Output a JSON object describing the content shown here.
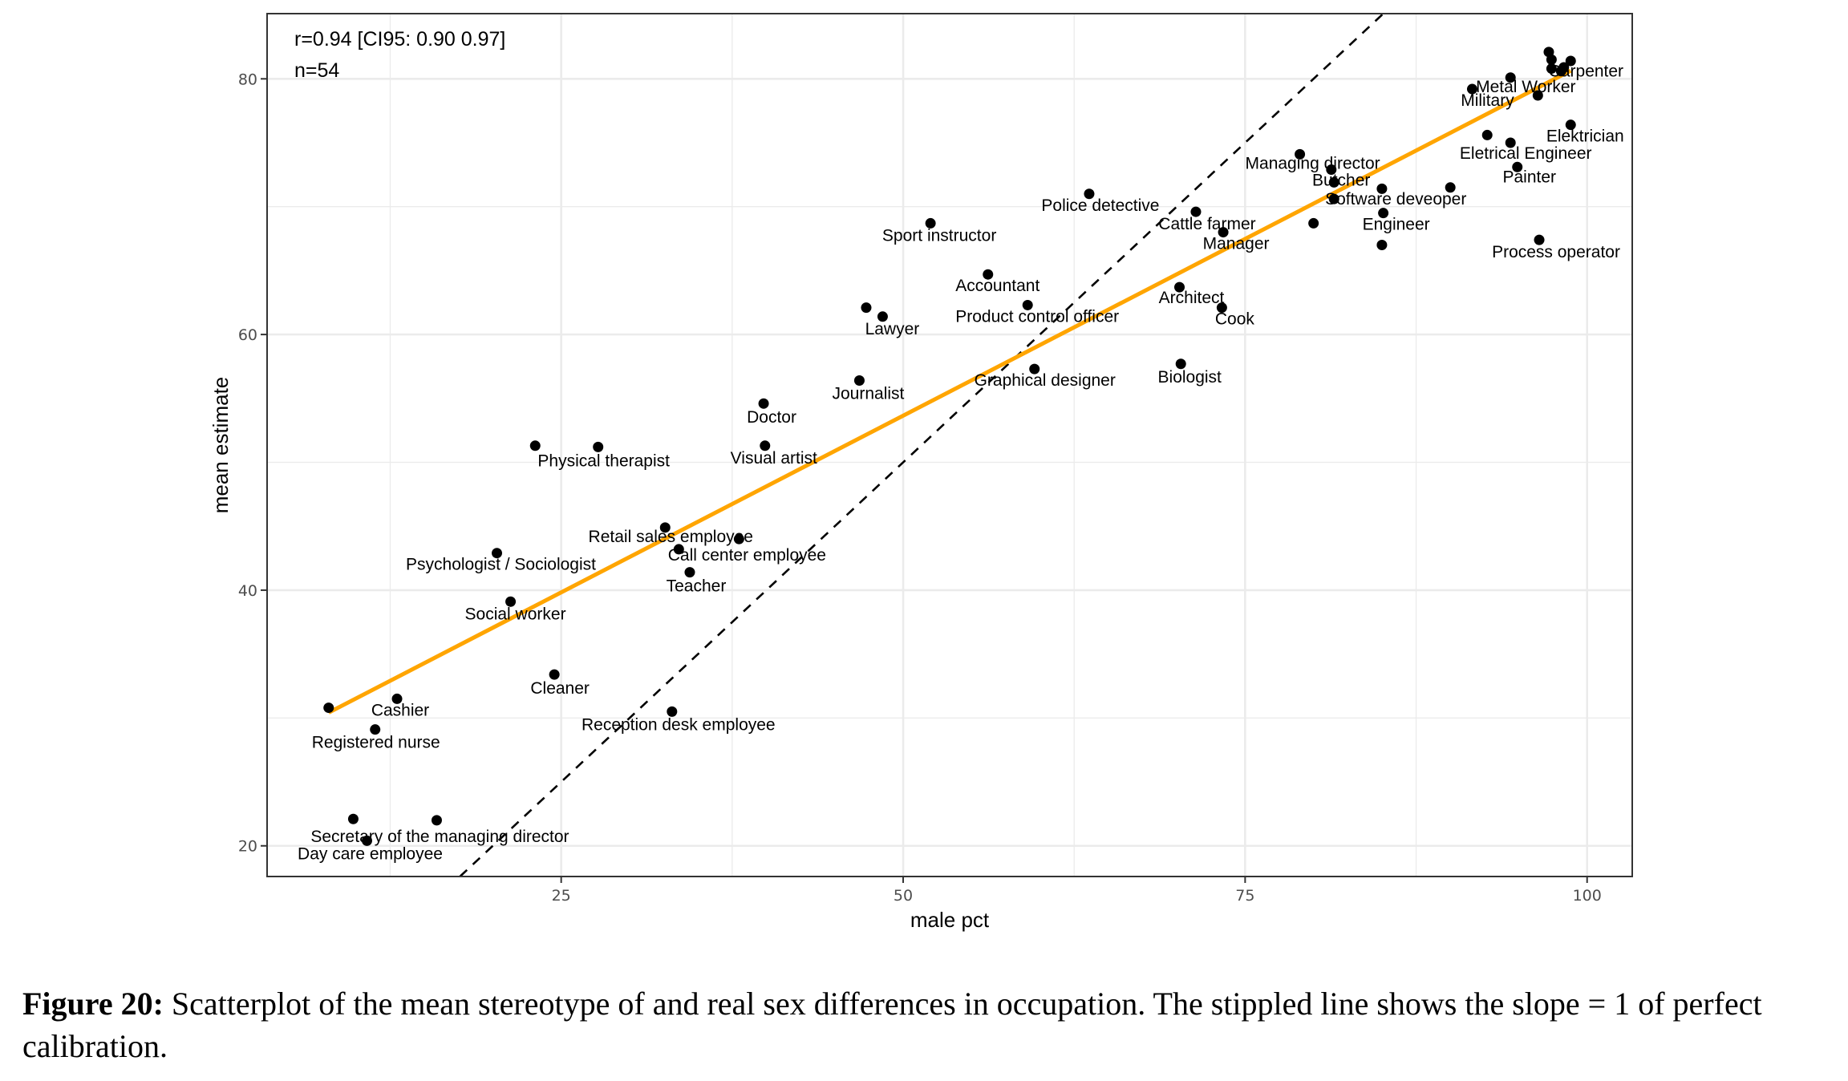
{
  "chart_data": {
    "type": "scatter",
    "title": "",
    "xlabel": "male pct",
    "ylabel": "mean estimate",
    "xlim": [
      3.5,
      103.3
    ],
    "ylim": [
      17.6,
      85.1
    ],
    "x_ticks": [
      25,
      50,
      75,
      100
    ],
    "y_ticks": [
      20,
      40,
      60,
      80
    ],
    "grid": true,
    "annotations": [
      "r=0.94 [CI95: 0.90 0.97]",
      "n=54"
    ],
    "regression_line": {
      "color": "#FFA500",
      "x_range": [
        8.0,
        98.8
      ],
      "intercept": 26.0,
      "slope": 0.553
    },
    "reference_line": {
      "style": "dashed",
      "color": "#000000",
      "intercept": 0,
      "slope": 1,
      "label": "slope = 1"
    },
    "points": [
      {
        "x": 97.4,
        "y": 80.8,
        "label": "Carpenter"
      },
      {
        "x": 96.4,
        "y": 78.7,
        "label": "Metal Worker"
      },
      {
        "x": 91.6,
        "y": 79.2,
        "label": "Military"
      },
      {
        "x": 98.8,
        "y": 76.4,
        "label": "Elektrician"
      },
      {
        "x": 94.4,
        "y": 75.0,
        "label": "Eletrical Engineer"
      },
      {
        "x": 94.9,
        "y": 73.1,
        "label": "Painter"
      },
      {
        "x": 79.0,
        "y": 74.1,
        "label": "Managing director"
      },
      {
        "x": 81.5,
        "y": 71.9,
        "label": "Butcher"
      },
      {
        "x": 81.5,
        "y": 70.6,
        "label": "Software deveoper"
      },
      {
        "x": 63.6,
        "y": 71.0,
        "label": "Police detective"
      },
      {
        "x": 71.4,
        "y": 69.6,
        "label": "Cattle farmer"
      },
      {
        "x": 85.1,
        "y": 69.5,
        "label": "Engineer"
      },
      {
        "x": 73.4,
        "y": 68.0,
        "label": "Manager"
      },
      {
        "x": 96.5,
        "y": 67.4,
        "label": "Process operator"
      },
      {
        "x": 52.0,
        "y": 68.7,
        "label": "Sport instructor"
      },
      {
        "x": 56.2,
        "y": 64.7,
        "label": "Accountant"
      },
      {
        "x": 70.2,
        "y": 63.7,
        "label": "Architect"
      },
      {
        "x": 59.1,
        "y": 62.3,
        "label": "Product control officer"
      },
      {
        "x": 73.3,
        "y": 62.1,
        "label": "Cook"
      },
      {
        "x": 48.5,
        "y": 61.4,
        "label": "Lawyer"
      },
      {
        "x": 59.6,
        "y": 57.3,
        "label": "Graphical designer"
      },
      {
        "x": 70.3,
        "y": 57.7,
        "label": "Biologist"
      },
      {
        "x": 46.8,
        "y": 56.4,
        "label": "Journalist"
      },
      {
        "x": 39.8,
        "y": 54.6,
        "label": "Doctor"
      },
      {
        "x": 27.7,
        "y": 51.2,
        "label": "Physical therapist"
      },
      {
        "x": 39.9,
        "y": 51.3,
        "label": "Visual artist"
      },
      {
        "x": 32.6,
        "y": 44.9,
        "label": "Retail sales employee"
      },
      {
        "x": 20.3,
        "y": 42.9,
        "label": "Psychologist / Sociologist"
      },
      {
        "x": 38.0,
        "y": 44.0,
        "label": "Call center employee"
      },
      {
        "x": 34.4,
        "y": 41.4,
        "label": "Teacher"
      },
      {
        "x": 21.3,
        "y": 39.1,
        "label": "Social worker"
      },
      {
        "x": 24.5,
        "y": 33.4,
        "label": "Cleaner"
      },
      {
        "x": 13.0,
        "y": 31.5,
        "label": "Cashier"
      },
      {
        "x": 33.1,
        "y": 30.5,
        "label": "Reception desk employee"
      },
      {
        "x": 11.4,
        "y": 29.1,
        "label": "Registered nurse"
      },
      {
        "x": 15.9,
        "y": 22.0,
        "label": "Secretary of the managing director"
      },
      {
        "x": 10.8,
        "y": 20.4,
        "label": "Day care employee"
      },
      {
        "x": 8.0,
        "y": 30.8,
        "label": ""
      },
      {
        "x": 9.8,
        "y": 22.1,
        "label": ""
      },
      {
        "x": 23.1,
        "y": 51.3,
        "label": ""
      },
      {
        "x": 33.6,
        "y": 43.2,
        "label": ""
      },
      {
        "x": 47.3,
        "y": 62.1,
        "label": ""
      },
      {
        "x": 80.0,
        "y": 68.7,
        "label": ""
      },
      {
        "x": 85.0,
        "y": 71.4,
        "label": ""
      },
      {
        "x": 90.0,
        "y": 71.5,
        "label": ""
      },
      {
        "x": 85.0,
        "y": 67.0,
        "label": ""
      },
      {
        "x": 81.3,
        "y": 72.9,
        "label": ""
      },
      {
        "x": 92.7,
        "y": 75.6,
        "label": ""
      },
      {
        "x": 94.4,
        "y": 80.1,
        "label": ""
      },
      {
        "x": 97.2,
        "y": 82.1,
        "label": ""
      },
      {
        "x": 97.4,
        "y": 81.5,
        "label": ""
      },
      {
        "x": 98.8,
        "y": 81.4,
        "label": ""
      },
      {
        "x": 98.3,
        "y": 80.9,
        "label": ""
      },
      {
        "x": 98.1,
        "y": 80.6,
        "label": ""
      }
    ]
  },
  "caption": {
    "label": "Figure 20:",
    "text": " Scatterplot of the mean stereotype of and real sex differences in occupation. The stippled line shows the slope = 1 of perfect calibration."
  }
}
